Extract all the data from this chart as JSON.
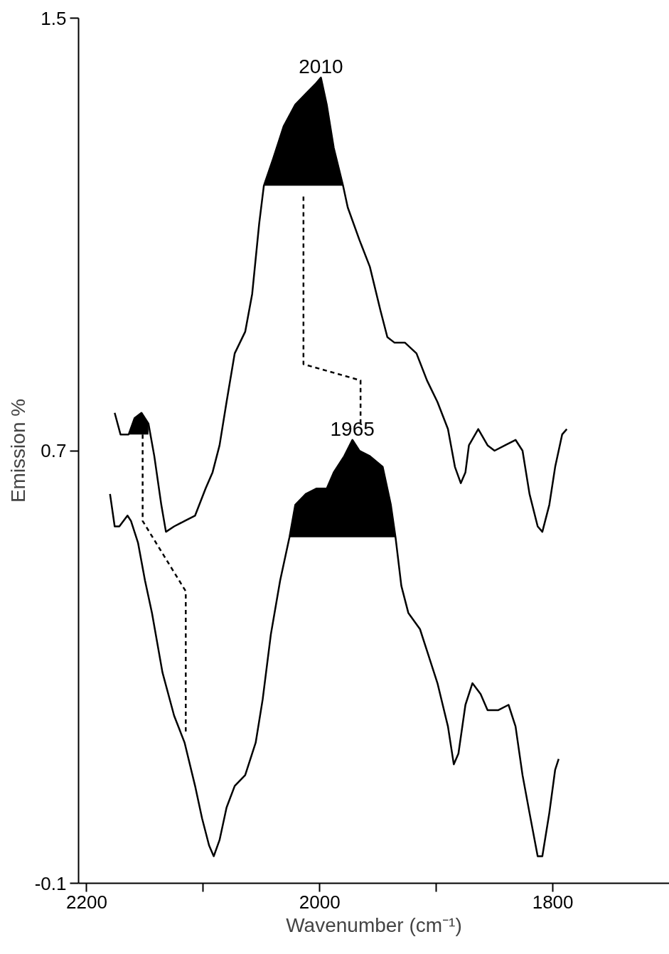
{
  "chart_data": {
    "type": "line",
    "xlabel": "Wavenumber (cm⁻¹)",
    "ylabel": "Emission %",
    "xlim": [
      2207,
      1700
    ],
    "ylim": [
      -0.1,
      1.5
    ],
    "xticks": [
      2200,
      {
        "value": 2100,
        "label": null
      },
      2000,
      {
        "value": 1900,
        "label": null
      },
      1800
    ],
    "yticks": [
      -0.1,
      0.7,
      1.5
    ],
    "grid": false,
    "series": [
      {
        "color": "#000000",
        "x": [
          2176,
          2171,
          2164,
          2159,
          2153,
          2147,
          2142,
          2136,
          2132,
          2125,
          2116,
          2107,
          2098,
          2092,
          2086,
          2080,
          2073,
          2064,
          2058,
          2052,
          2048,
          2040,
          2031,
          2021,
          2012,
          2003,
          1999,
          1994,
          1988,
          1980,
          1976,
          1966,
          1957,
          1948,
          1942,
          1936,
          1927,
          1917,
          1908,
          1899,
          1890,
          1884,
          1879,
          1875,
          1872,
          1864,
          1856,
          1850,
          1841,
          1832,
          1826,
          1820,
          1813,
          1809,
          1803,
          1798,
          1792,
          1788
        ],
        "values": [
          0.77,
          0.73,
          0.73,
          0.76,
          0.77,
          0.75,
          0.69,
          0.6,
          0.55,
          0.56,
          0.57,
          0.58,
          0.63,
          0.66,
          0.71,
          0.79,
          0.88,
          0.92,
          0.99,
          1.12,
          1.19,
          1.24,
          1.3,
          1.34,
          1.36,
          1.38,
          1.39,
          1.34,
          1.26,
          1.19,
          1.15,
          1.09,
          1.04,
          0.96,
          0.91,
          0.9,
          0.9,
          0.88,
          0.83,
          0.79,
          0.74,
          0.67,
          0.64,
          0.66,
          0.71,
          0.74,
          0.71,
          0.7,
          0.71,
          0.72,
          0.7,
          0.62,
          0.56,
          0.55,
          0.6,
          0.67,
          0.73,
          0.74
        ],
        "lower": [
          null,
          null,
          0.73,
          0.73,
          0.73,
          0.73,
          null,
          null,
          null,
          null,
          null,
          null,
          null,
          null,
          null,
          null,
          null,
          null,
          null,
          null,
          1.19,
          1.19,
          1.19,
          1.19,
          1.19,
          1.19,
          1.19,
          1.19,
          1.19,
          1.19,
          null,
          null,
          null,
          null,
          null,
          null,
          null,
          null,
          null,
          null,
          null,
          null,
          null,
          null,
          null,
          null,
          null,
          null,
          null,
          null,
          null,
          null,
          null,
          null,
          null,
          null,
          null,
          null
        ],
        "upper": [
          null,
          null,
          0.73,
          0.76,
          0.77,
          0.75,
          null,
          null,
          null,
          null,
          null,
          null,
          null,
          null,
          null,
          null,
          null,
          null,
          null,
          null,
          1.19,
          1.24,
          1.3,
          1.34,
          1.36,
          1.38,
          1.39,
          1.34,
          1.26,
          1.19,
          null,
          null,
          null,
          null,
          null,
          null,
          null,
          null,
          null,
          null,
          null,
          null,
          null,
          null,
          null,
          null,
          null,
          null,
          null,
          null,
          null,
          null,
          null,
          null,
          null,
          null,
          null,
          null
        ]
      },
      {
        "color": "#000000",
        "x": [
          2180,
          2176,
          2172,
          2165,
          2162,
          2156,
          2150,
          2144,
          2135,
          2125,
          2116,
          2107,
          2101,
          2095,
          2091,
          2086,
          2080,
          2073,
          2064,
          2055,
          2049,
          2042,
          2034,
          2026,
          2021,
          2012,
          2003,
          1994,
          1988,
          1979,
          1972,
          1966,
          1957,
          1946,
          1939,
          1935,
          1930,
          1924,
          1914,
          1908,
          1899,
          1890,
          1885,
          1881,
          1875,
          1869,
          1862,
          1856,
          1847,
          1838,
          1832,
          1826,
          1820,
          1813,
          1809,
          1803,
          1798,
          1795
        ],
        "values": [
          0.62,
          0.56,
          0.56,
          0.58,
          0.57,
          0.53,
          0.46,
          0.4,
          0.29,
          0.21,
          0.16,
          0.08,
          0.02,
          -0.03,
          -0.05,
          -0.02,
          0.04,
          0.08,
          0.1,
          0.16,
          0.24,
          0.36,
          0.46,
          0.54,
          0.6,
          0.62,
          0.63,
          0.63,
          0.66,
          0.69,
          0.72,
          0.7,
          0.69,
          0.67,
          0.6,
          0.54,
          0.45,
          0.4,
          0.37,
          0.33,
          0.27,
          0.19,
          0.12,
          0.14,
          0.23,
          0.27,
          0.25,
          0.22,
          0.22,
          0.23,
          0.19,
          0.1,
          0.03,
          -0.05,
          -0.05,
          0.03,
          0.11,
          0.13
        ],
        "lower": [
          null,
          null,
          null,
          null,
          null,
          null,
          null,
          null,
          null,
          null,
          null,
          null,
          null,
          null,
          null,
          null,
          null,
          null,
          null,
          null,
          null,
          null,
          null,
          0.54,
          0.54,
          0.54,
          0.54,
          0.54,
          0.54,
          0.54,
          0.54,
          0.54,
          0.54,
          0.54,
          0.54,
          0.54,
          null,
          null,
          null,
          null,
          null,
          null,
          null,
          null,
          null,
          null,
          null,
          null,
          null,
          null,
          null,
          null,
          null,
          null,
          null,
          null,
          null,
          null
        ],
        "upper": [
          null,
          null,
          null,
          null,
          null,
          null,
          null,
          null,
          null,
          null,
          null,
          null,
          null,
          null,
          null,
          null,
          null,
          null,
          null,
          null,
          null,
          null,
          null,
          0.54,
          0.6,
          0.62,
          0.63,
          0.63,
          0.66,
          0.69,
          0.72,
          0.7,
          0.69,
          0.67,
          0.6,
          0.54,
          null,
          null,
          null,
          null,
          null,
          null,
          null,
          null,
          null,
          null,
          null,
          null,
          null,
          null,
          null,
          null,
          null,
          null,
          null,
          null,
          null,
          null
        ]
      },
      {
        "type": "line",
        "line_style": "dashed",
        "color": "#000000",
        "x": [
          2014,
          2014,
          1965,
          1965
        ],
        "values": [
          1.17,
          0.86,
          0.83,
          0.75
        ]
      },
      {
        "type": "line",
        "line_style": "dashed",
        "color": "#000000",
        "x": [
          2152,
          2152,
          2115,
          2115
        ],
        "values": [
          0.73,
          0.57,
          0.44,
          0.18
        ]
      }
    ],
    "annotations": [
      "2010",
      "1965"
    ]
  }
}
